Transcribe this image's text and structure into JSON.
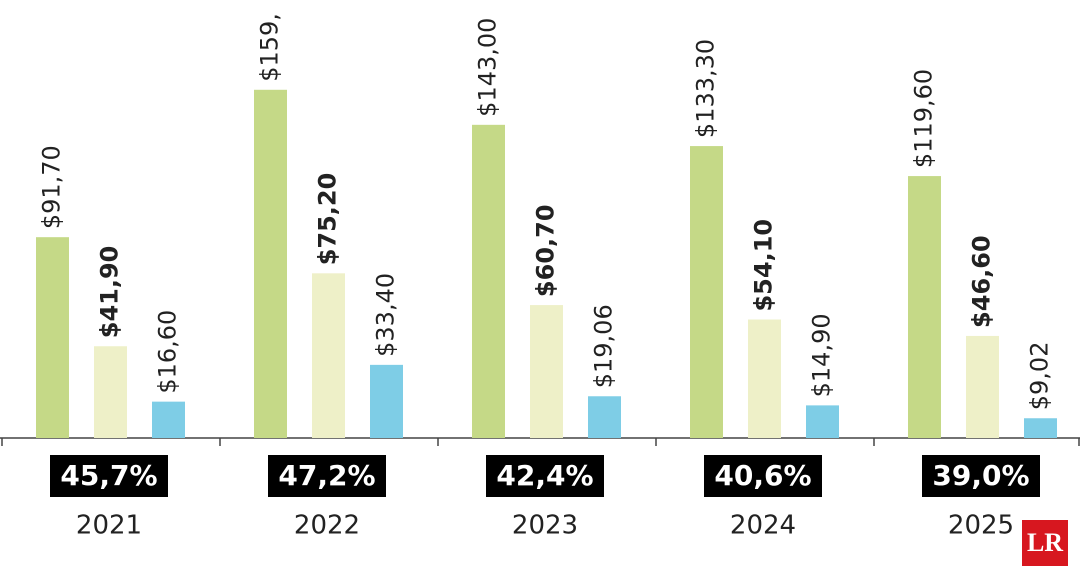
{
  "chart_data": {
    "type": "bar",
    "categories": [
      "2021",
      "2022",
      "2023",
      "2024",
      "2025"
    ],
    "annotations": [
      "45,7%",
      "47,2%",
      "42,4%",
      "40,6%",
      "39,0%"
    ],
    "series": [
      {
        "color": "#c5d987",
        "values": [
          91.7,
          159,
          143.0,
          133.3,
          119.6
        ],
        "value_labels": [
          "$91,70",
          "$159,",
          "$143,00",
          "$133,30",
          "$119,60"
        ]
      },
      {
        "color": "#eef0c8",
        "values": [
          41.9,
          75.2,
          60.7,
          54.1,
          46.6
        ],
        "value_labels": [
          "$41,90",
          "$75,20",
          "$60,70",
          "$54,10",
          "$46,60"
        ]
      },
      {
        "color": "#7ecde6",
        "values": [
          16.6,
          33.4,
          19.06,
          14.9,
          9.02
        ],
        "value_labels": [
          "$16,60",
          "$33,40",
          "$19,06",
          "$14,90",
          "$9,02"
        ]
      }
    ],
    "ylim": [
      0,
      200
    ]
  },
  "logo": "LR"
}
